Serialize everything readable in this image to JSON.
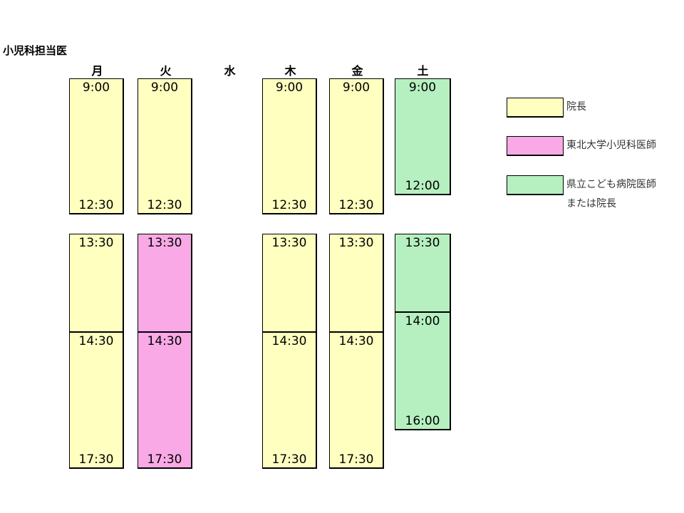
{
  "title": "小児科担当医",
  "columns": [
    {
      "day": "月",
      "blocks": [
        {
          "color": "#ffffc0",
          "top": "9:00",
          "bottom": "12:30"
        },
        {
          "color": "#ffffc0",
          "top": "13:30"
        },
        {
          "color": "#ffffc0",
          "top": "14:30",
          "bottom": "17:30"
        }
      ]
    },
    {
      "day": "火",
      "blocks": [
        {
          "color": "#ffffc0",
          "top": "9:00",
          "bottom": "12:30"
        },
        {
          "color": "#f9a9e6",
          "top": "13:30"
        },
        {
          "color": "#f9a9e6",
          "top": "14:30",
          "bottom": "17:30"
        }
      ]
    },
    {
      "day": "水",
      "blocks": []
    },
    {
      "day": "木",
      "blocks": [
        {
          "color": "#ffffc0",
          "top": "9:00",
          "bottom": "12:30"
        },
        {
          "color": "#ffffc0",
          "top": "13:30"
        },
        {
          "color": "#ffffc0",
          "top": "14:30",
          "bottom": "17:30"
        }
      ]
    },
    {
      "day": "金",
      "blocks": [
        {
          "color": "#ffffc0",
          "top": "9:00",
          "bottom": "12:30"
        },
        {
          "color": "#ffffc0",
          "top": "13:30"
        },
        {
          "color": "#ffffc0",
          "top": "14:30",
          "bottom": "17:30"
        }
      ]
    },
    {
      "day": "土",
      "blocks": [
        {
          "color": "#b6f0c0",
          "top": "9:00",
          "bottom": "12:00"
        },
        {
          "color": "#b6f0c0",
          "top": "13:30"
        },
        {
          "color": "#b6f0c0",
          "top": "14:00",
          "bottom": "16:00"
        }
      ]
    }
  ],
  "legend": [
    {
      "color": "#ffffc0",
      "lines": [
        "院長"
      ]
    },
    {
      "color": "#f9a9e6",
      "lines": [
        "東北大学小児科医師"
      ]
    },
    {
      "color": "#b6f0c0",
      "lines": [
        "県立こども病院医師",
        "または院長"
      ]
    }
  ]
}
